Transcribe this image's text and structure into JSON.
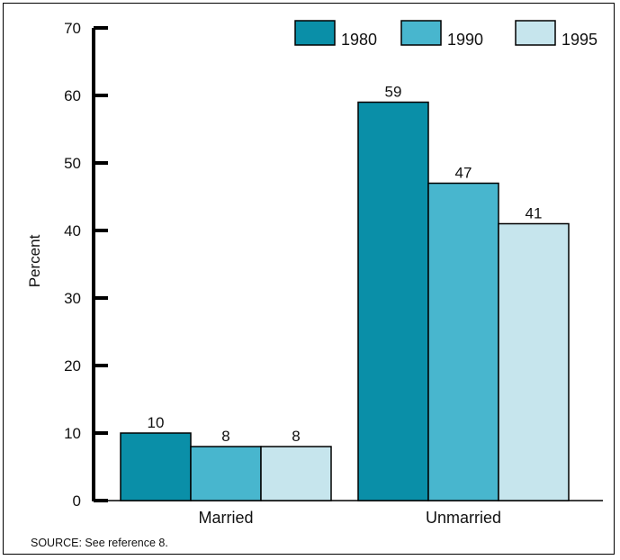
{
  "chart_data": {
    "type": "bar",
    "categories": [
      "Married",
      "Unmarried"
    ],
    "series": [
      {
        "name": "1980",
        "values": [
          10,
          59
        ],
        "color": "#0a8fa8"
      },
      {
        "name": "1990",
        "values": [
          8,
          47
        ],
        "color": "#48b6ce"
      },
      {
        "name": "1995",
        "values": [
          8,
          41
        ],
        "color": "#c6e5ed"
      }
    ],
    "ylabel": "Percent",
    "xlabel": "",
    "ylim": [
      0,
      70
    ],
    "yticks": [
      0,
      10,
      20,
      30,
      40,
      50,
      60,
      70
    ],
    "legend_position": "top-right",
    "grid": false
  },
  "footer": {
    "source": "SOURCE:  See reference 8."
  }
}
